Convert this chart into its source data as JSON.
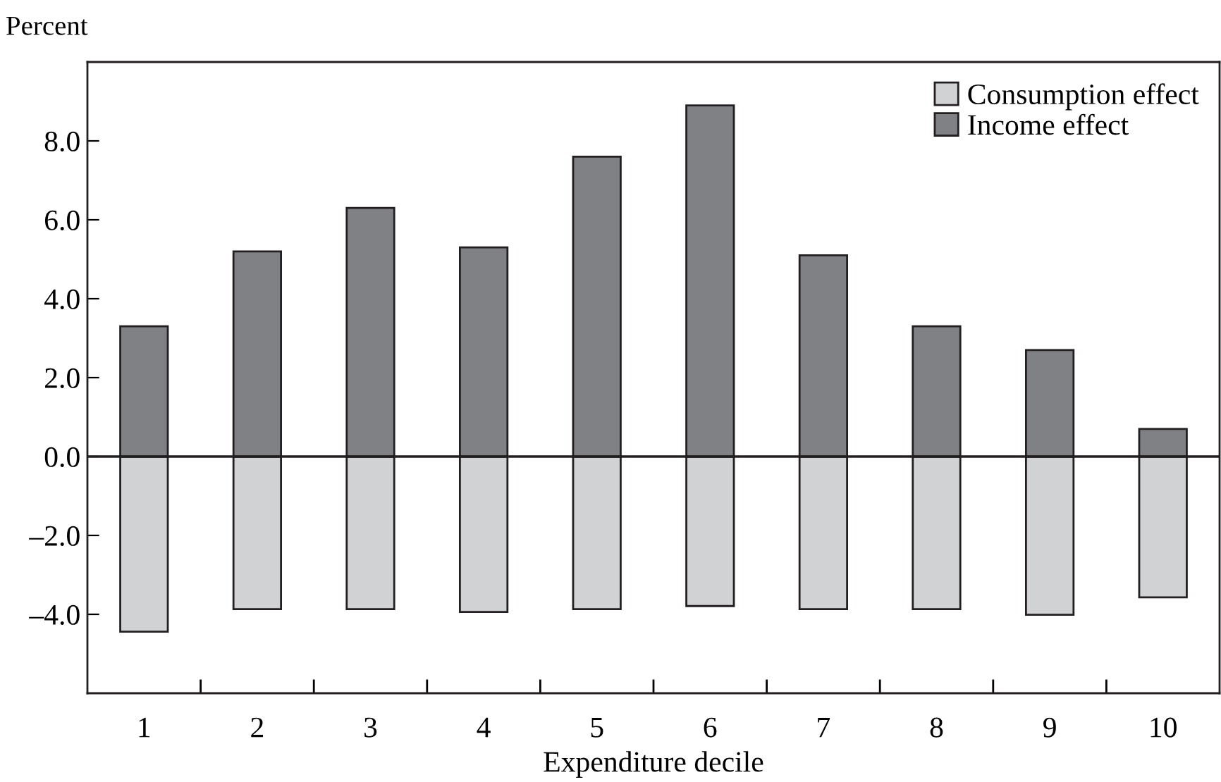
{
  "chart_data": {
    "type": "bar",
    "stacked": true,
    "ylabel": "Percent",
    "xlabel": "Expenditure decile",
    "categories": [
      "1",
      "2",
      "3",
      "4",
      "5",
      "6",
      "7",
      "8",
      "9",
      "10"
    ],
    "series": [
      {
        "name": "Consumption effect",
        "color": "#d1d2d4",
        "values": [
          -4.44,
          -3.87,
          -3.87,
          -3.94,
          -3.87,
          -3.79,
          -3.87,
          -3.87,
          -4.01,
          -3.57
        ]
      },
      {
        "name": "Income effect",
        "color": "#808184",
        "values": [
          3.3,
          5.2,
          6.3,
          5.3,
          7.6,
          8.9,
          5.1,
          3.3,
          2.7,
          0.7
        ]
      }
    ],
    "ylim": [
      -6.0,
      10.0
    ],
    "yticks": [
      {
        "value": -4,
        "label": "–4.0"
      },
      {
        "value": -2,
        "label": "–2.0"
      },
      {
        "value": 0,
        "label": "0.0"
      },
      {
        "value": 2,
        "label": "2.0"
      },
      {
        "value": 4,
        "label": "4.0"
      },
      {
        "value": 6,
        "label": "6.0"
      },
      {
        "value": 8,
        "label": "8.0"
      }
    ],
    "ref_lines": [
      {
        "axis": "y",
        "value": 0
      }
    ],
    "legend": "top right",
    "grid": false
  }
}
